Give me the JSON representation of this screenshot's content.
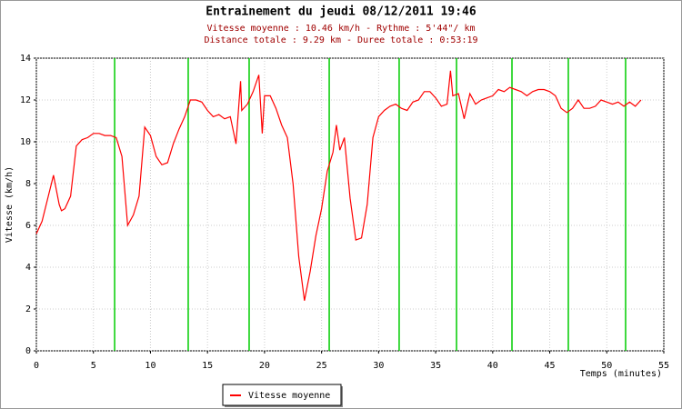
{
  "chart_data": {
    "type": "line",
    "title": "Entrainement du jeudi 08/12/2011 19:46",
    "subtitle": [
      "Vitesse moyenne : 10.46 km/h - Rythme : 5'44\"/ km",
      "Distance totale : 9.29 km - Duree totale : 0:53:19"
    ],
    "xlabel": "Temps (minutes)",
    "ylabel": "Vitesse (km/h)",
    "xlim": [
      0,
      55
    ],
    "xticks": [
      0,
      5,
      10,
      15,
      20,
      25,
      30,
      35,
      40,
      45,
      50,
      55
    ],
    "ylim": [
      0,
      14
    ],
    "yticks": [
      0,
      2,
      4,
      6,
      8,
      10,
      12,
      14
    ],
    "grid": true,
    "legend": "bottom",
    "vlines": {
      "color": "#00cc00",
      "x": [
        6.86,
        13.31,
        18.65,
        25.67,
        31.8,
        36.83,
        41.69,
        46.63,
        51.65
      ]
    },
    "series": [
      {
        "name": "Vitesse moyenne",
        "color": "#ff0000",
        "x": [
          0,
          0.5,
          1,
          1.5,
          2,
          2.2,
          2.5,
          3,
          3.5,
          4,
          4.5,
          5,
          5.5,
          6,
          6.5,
          7,
          7.5,
          8,
          8.5,
          9,
          9.5,
          10,
          10.5,
          11,
          11.5,
          12,
          12.5,
          13,
          13.5,
          14,
          14.5,
          15,
          15.5,
          16,
          16.5,
          17,
          17.5,
          17.9,
          18,
          18.5,
          19,
          19.5,
          19.8,
          20,
          20.5,
          21,
          21.5,
          22,
          22.5,
          23,
          23.5,
          24,
          24.5,
          25,
          25.5,
          26,
          26.3,
          26.6,
          27,
          27.5,
          28,
          28.5,
          29,
          29.5,
          30,
          30.5,
          31,
          31.5,
          32,
          32.5,
          33,
          33.5,
          34,
          34.5,
          35,
          35.5,
          36,
          36.3,
          36.5,
          37,
          37.5,
          38,
          38.5,
          39,
          39.5,
          40,
          40.5,
          41,
          41.5,
          42,
          42.5,
          43,
          43.5,
          44,
          44.5,
          45,
          45.5,
          46,
          46.5,
          47,
          47.5,
          48,
          48.5,
          49,
          49.5,
          50,
          50.5,
          51,
          51.5,
          52,
          52.5,
          53
        ],
        "values": [
          5.6,
          6.2,
          7.3,
          8.4,
          7.0,
          6.7,
          6.8,
          7.4,
          9.8,
          10.1,
          10.2,
          10.4,
          10.4,
          10.3,
          10.3,
          10.2,
          9.3,
          6.0,
          6.5,
          7.4,
          10.7,
          10.3,
          9.3,
          8.9,
          9.0,
          9.9,
          10.6,
          11.2,
          12.0,
          12.0,
          11.9,
          11.5,
          11.2,
          11.3,
          11.1,
          11.2,
          9.9,
          12.9,
          11.5,
          11.8,
          12.4,
          13.2,
          10.4,
          12.2,
          12.2,
          11.6,
          10.8,
          10.2,
          8.0,
          4.5,
          2.4,
          3.8,
          5.5,
          6.8,
          8.6,
          9.5,
          10.8,
          9.6,
          10.2,
          7.3,
          5.3,
          5.4,
          7.0,
          10.2,
          11.2,
          11.5,
          11.7,
          11.8,
          11.6,
          11.5,
          11.9,
          12.0,
          12.4,
          12.4,
          12.1,
          11.7,
          11.8,
          13.4,
          12.2,
          12.3,
          11.1,
          12.3,
          11.8,
          12.0,
          12.1,
          12.2,
          12.5,
          12.4,
          12.6,
          12.5,
          12.4,
          12.2,
          12.4,
          12.5,
          12.5,
          12.4,
          12.2,
          11.6,
          11.4,
          11.6,
          12.0,
          11.6,
          11.6,
          11.7,
          12.0,
          11.9,
          11.8,
          11.9,
          11.7,
          11.9,
          11.7,
          12.0
        ]
      }
    ]
  }
}
